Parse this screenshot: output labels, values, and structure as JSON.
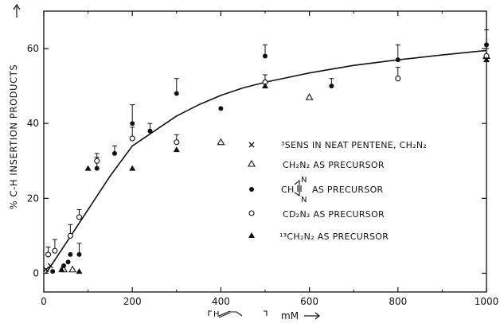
{
  "chart_data": {
    "type": "scatter",
    "xlim": [
      0,
      1000
    ],
    "ylim": [
      -5,
      70
    ],
    "x_ticks": [
      "0",
      "200",
      "400",
      "600",
      "800",
      "1000"
    ],
    "y_ticks": [
      "0",
      "20",
      "40",
      "60"
    ],
    "x_tick_values": [
      0,
      200,
      400,
      600,
      800,
      1000
    ],
    "y_tick_values": [
      0,
      20,
      40,
      60
    ],
    "ylabel": "% C-H INSERTION PRODUCTS",
    "xlabel_unit": "mM",
    "legend_position": "center-right",
    "grid": false,
    "fit_curve": {
      "x": [
        5,
        50,
        100,
        150,
        200,
        250,
        300,
        350,
        400,
        450,
        500,
        600,
        700,
        800,
        900,
        1000
      ],
      "y": [
        0,
        8,
        17,
        26,
        34,
        38,
        42,
        45,
        47.5,
        49.5,
        51,
        53.5,
        55.5,
        57,
        58.3,
        59.5
      ]
    },
    "series": [
      {
        "name": "³SENS IN NEAT PENTENE, CH₂N₂",
        "marker": "cross",
        "points": [
          [
            5,
            1
          ],
          [
            15,
            2
          ]
        ]
      },
      {
        "name": "CH₂N₂ AS PRECURSOR",
        "marker": "open-triangle",
        "points": [
          [
            45,
            1
          ],
          [
            65,
            1
          ],
          [
            400,
            35
          ],
          [
            600,
            47
          ],
          [
            1000,
            58
          ]
        ]
      },
      {
        "name": "diazirine AS PRECURSOR",
        "marker": "filled-circle",
        "points": [
          [
            20,
            0.5
          ],
          [
            45,
            2
          ],
          [
            55,
            3
          ],
          [
            60,
            5
          ],
          [
            80,
            5
          ],
          [
            120,
            28
          ],
          [
            160,
            32
          ],
          [
            200,
            40
          ],
          [
            240,
            38
          ],
          [
            300,
            48
          ],
          [
            400,
            44
          ],
          [
            500,
            58
          ],
          [
            650,
            50
          ],
          [
            800,
            57
          ],
          [
            1000,
            61
          ]
        ],
        "error_up": [
          0,
          0,
          0,
          0,
          3,
          3,
          2,
          5,
          2,
          4,
          0,
          3,
          2,
          4,
          4
        ]
      },
      {
        "name": "CD₂N₂ AS PRECURSOR",
        "marker": "open-circle",
        "points": [
          [
            10,
            5
          ],
          [
            25,
            6
          ],
          [
            60,
            10
          ],
          [
            80,
            15
          ],
          [
            120,
            30
          ],
          [
            200,
            36
          ],
          [
            300,
            35
          ],
          [
            500,
            51
          ],
          [
            800,
            52
          ],
          [
            1000,
            58
          ]
        ],
        "error_up": [
          2,
          3,
          3,
          2,
          2,
          3,
          2,
          2,
          3,
          2
        ]
      },
      {
        "name": "¹³CH₂N₂ AS PRECURSOR",
        "marker": "filled-triangle",
        "points": [
          [
            40,
            1
          ],
          [
            80,
            0.5
          ],
          [
            100,
            28
          ],
          [
            200,
            28
          ],
          [
            300,
            33
          ],
          [
            500,
            50
          ],
          [
            1000,
            57
          ]
        ]
      }
    ]
  }
}
